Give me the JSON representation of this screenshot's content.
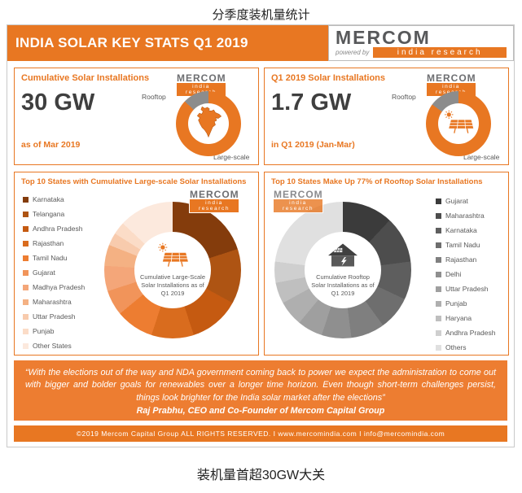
{
  "page": {
    "top_caption": "分季度装机量统计",
    "bottom_caption": "装机量首超30GW大关"
  },
  "colors": {
    "brand_orange": "#E87722",
    "quote_orange": "#ED7D31",
    "rooftop_gray": "#8C8C8C",
    "text_gray": "#595959"
  },
  "header": {
    "title": "INDIA SOLAR KEY STATS Q1 2019",
    "powered_by": "powered by"
  },
  "logo": {
    "name": "MERCOM",
    "sub": "india research"
  },
  "panels": {
    "cumulative": {
      "title": "Cumulative Solar Installations",
      "value": "30 GW",
      "subtitle": "as of Mar 2019",
      "rooftop_label": "Rooftop",
      "large_label": "Large-scale"
    },
    "q1": {
      "title": "Q1 2019 Solar Installations",
      "value": "1.7 GW",
      "subtitle": "in Q1 2019 (Jan-Mar)",
      "rooftop_label": "Rooftop",
      "large_label": "Large-scale"
    },
    "large_states": {
      "title": "Top 10 States with Cumulative Large-scale Solar Installations",
      "center_label": "Cumulative Large-Scale Solar Installations as of Q1 2019"
    },
    "rooftop_states": {
      "title": "Top 10 States Make Up 77% of Rooftop Solar Installations",
      "center_label": "Cumulative Rooftop Solar Installations as of Q1 2019"
    }
  },
  "quote": {
    "text": "“With the elections out of the way and NDA government coming back to power we expect the administration to come out with bigger and bolder goals for renewables over a longer time horizon. Even though short-term challenges persist, things look brighter for the India solar market after the elections”",
    "attribution": "Raj Prabhu, CEO and Co-Founder of Mercom Capital Group"
  },
  "footer": {
    "text": "©2019 Mercom Capital Group ALL RIGHTS RESERVED.  I  www.mercomindia.com  I  info@mercomindia.com"
  },
  "chart_data": [
    {
      "type": "pie",
      "title": "Cumulative Solar Installations",
      "total_label": "30 GW",
      "as_of": "as of Mar 2019",
      "categories": [
        "Large-scale",
        "Rooftop"
      ],
      "values": [
        87,
        13
      ],
      "colors": [
        "#E87722",
        "#8C8C8C"
      ],
      "legend_position": "around-ring"
    },
    {
      "type": "pie",
      "title": "Q1 2019 Solar Installations",
      "total_label": "1.7 GW",
      "as_of": "in Q1 2019 (Jan-Mar)",
      "categories": [
        "Large-scale",
        "Rooftop"
      ],
      "values": [
        85,
        15
      ],
      "colors": [
        "#E87722",
        "#8C8C8C"
      ],
      "legend_position": "around-ring"
    },
    {
      "type": "pie",
      "title": "Top 10 States with Cumulative Large-scale Solar Installations",
      "center_label": "Cumulative Large-Scale Solar Installations as of Q1 2019",
      "categories": [
        "Karnataka",
        "Telangana",
        "Andhra Pradesh",
        "Rajasthan",
        "Tamil Nadu",
        "Gujarat",
        "Madhya Pradesh",
        "Maharashtra",
        "Uttar Pradesh",
        "Punjab",
        "Other States"
      ],
      "values": [
        20,
        13,
        12,
        10,
        9,
        6,
        6,
        5,
        3,
        3,
        13
      ],
      "colors": [
        "#843C0C",
        "#AE5413",
        "#C55A11",
        "#D96C1E",
        "#ED7D31",
        "#F1945A",
        "#F4A679",
        "#F4B183",
        "#F8CBAD",
        "#FBDCC7",
        "#FCE9DD"
      ],
      "legend_position": "left"
    },
    {
      "type": "pie",
      "title": "Top 10 States Make Up 77% of Rooftop Solar Installations",
      "center_label": "Cumulative Rooftop Solar Installations as of Q1 2019",
      "categories": [
        "Gujarat",
        "Maharashtra",
        "Karnataka",
        "Tamil Nadu",
        "Rajasthan",
        "Delhi",
        "Uttar Pradesh",
        "Punjab",
        "Haryana",
        "Andhra Pradesh",
        "Others"
      ],
      "values": [
        12,
        11,
        9,
        8,
        8,
        7,
        6,
        6,
        5,
        5,
        23
      ],
      "colors": [
        "#3B3B3B",
        "#4D4D4D",
        "#5E5E5E",
        "#6E6E6E",
        "#7F7F7F",
        "#8F8F8F",
        "#9F9F9F",
        "#AFAFAF",
        "#BFBFBF",
        "#CFCFCF",
        "#E0E0E0"
      ],
      "legend_position": "right"
    }
  ]
}
